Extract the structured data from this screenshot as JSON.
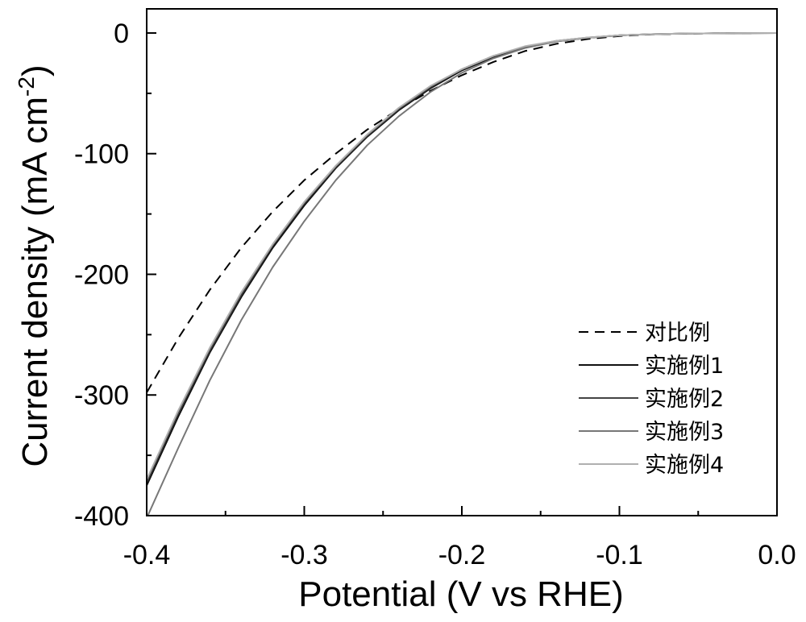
{
  "chart_data": {
    "type": "line",
    "title": "",
    "xlabel": "Potential (V vs RHE)",
    "ylabel_main": "Current density (mA cm",
    "ylabel_sup": "-2",
    "ylabel_close": ")",
    "xlim": [
      -0.4,
      0.0
    ],
    "ylim": [
      -400,
      20
    ],
    "xticks": [
      -0.4,
      -0.3,
      -0.2,
      -0.1,
      0.0
    ],
    "xtick_labels": [
      "-0.4",
      "-0.3",
      "-0.2",
      "-0.1",
      "0.0"
    ],
    "yticks": [
      0,
      -100,
      -200,
      -300,
      -400
    ],
    "ytick_labels": [
      "0",
      "-100",
      "-200",
      "-300",
      "-400"
    ],
    "grid": false,
    "legend_position": "bottom-right",
    "series": [
      {
        "name": "对比例",
        "color": "#000000",
        "dash": "dashed",
        "x": [
          -0.4,
          -0.38,
          -0.36,
          -0.34,
          -0.32,
          -0.3,
          -0.28,
          -0.26,
          -0.24,
          -0.22,
          -0.2,
          -0.18,
          -0.16,
          -0.14,
          -0.12,
          -0.1,
          -0.08,
          -0.06,
          -0.04,
          -0.02,
          0.0
        ],
        "y": [
          -298,
          -253,
          -213,
          -178,
          -148,
          -122,
          -100,
          -80,
          -63,
          -48,
          -35,
          -24,
          -15,
          -9,
          -5,
          -2.5,
          -1.2,
          -0.6,
          -0.3,
          -0.1,
          0
        ]
      },
      {
        "name": "实施例1",
        "color": "#111111",
        "dash": "solid",
        "x": [
          -0.4,
          -0.38,
          -0.36,
          -0.34,
          -0.32,
          -0.3,
          -0.28,
          -0.26,
          -0.24,
          -0.22,
          -0.2,
          -0.18,
          -0.16,
          -0.14,
          -0.12,
          -0.1,
          -0.08,
          -0.06,
          -0.04,
          -0.02,
          0.0
        ],
        "y": [
          -375,
          -318,
          -265,
          -219,
          -178,
          -143,
          -112,
          -86,
          -64,
          -46,
          -31,
          -20,
          -12,
          -7,
          -4,
          -2,
          -1,
          -0.5,
          -0.3,
          -0.1,
          0
        ]
      },
      {
        "name": "实施例2",
        "color": "#444444",
        "dash": "solid",
        "x": [
          -0.4,
          -0.38,
          -0.36,
          -0.34,
          -0.32,
          -0.3,
          -0.28,
          -0.26,
          -0.24,
          -0.22,
          -0.2,
          -0.18,
          -0.16,
          -0.14,
          -0.12,
          -0.1,
          -0.08,
          -0.06,
          -0.04,
          -0.02,
          0.0
        ],
        "y": [
          -372,
          -315,
          -263,
          -217,
          -176,
          -141,
          -111,
          -85,
          -63,
          -45,
          -30,
          -19,
          -11.5,
          -6.5,
          -3.8,
          -2,
          -1,
          -0.5,
          -0.3,
          -0.1,
          0
        ]
      },
      {
        "name": "实施例3",
        "color": "#777777",
        "dash": "solid",
        "x": [
          -0.4,
          -0.38,
          -0.36,
          -0.34,
          -0.32,
          -0.3,
          -0.28,
          -0.26,
          -0.24,
          -0.22,
          -0.2,
          -0.18,
          -0.16,
          -0.14,
          -0.12,
          -0.1,
          -0.08,
          -0.06,
          -0.04,
          -0.02,
          0.0
        ],
        "y": [
          -402,
          -344,
          -288,
          -238,
          -194,
          -156,
          -122,
          -93,
          -69,
          -49,
          -33,
          -21,
          -12.5,
          -7,
          -4,
          -2,
          -1,
          -0.5,
          -0.3,
          -0.1,
          0
        ]
      },
      {
        "name": "实施例4",
        "color": "#b0b0b0",
        "dash": "solid",
        "x": [
          -0.4,
          -0.38,
          -0.36,
          -0.34,
          -0.32,
          -0.3,
          -0.28,
          -0.26,
          -0.24,
          -0.22,
          -0.2,
          -0.18,
          -0.16,
          -0.14,
          -0.12,
          -0.1,
          -0.08,
          -0.06,
          -0.04,
          -0.02,
          0.0
        ],
        "y": [
          -370,
          -313,
          -261,
          -215,
          -175,
          -140,
          -110,
          -84,
          -62,
          -44,
          -30,
          -19,
          -11,
          -6.5,
          -3.7,
          -2,
          -1,
          -0.5,
          -0.3,
          -0.1,
          0
        ]
      }
    ]
  }
}
